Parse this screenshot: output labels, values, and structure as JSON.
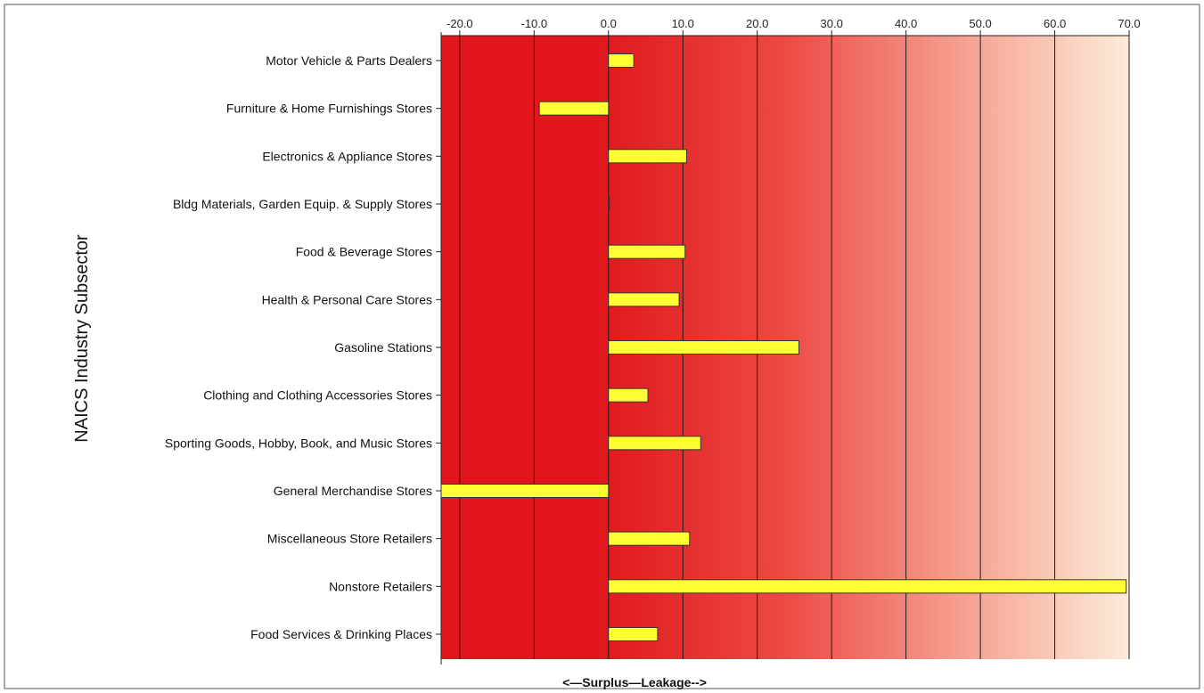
{
  "chart_data": {
    "type": "bar",
    "orientation": "horizontal",
    "title": "",
    "ylabel": "NAICS Industry Subsector",
    "xlabel": "<—Surplus—Leakage-->",
    "xlim": [
      -22.5,
      70.0
    ],
    "x_ticks": [
      -20,
      -10,
      0,
      10,
      20,
      30,
      40,
      50,
      60,
      70
    ],
    "x_tick_labels": [
      "-20.0",
      "-10.0",
      "0.0",
      "10.0",
      "20.0",
      "30.0",
      "40.0",
      "50.0",
      "60.0",
      "70.0"
    ],
    "x_axis_position": "top",
    "grid": true,
    "legend": "none",
    "categories": [
      "Motor Vehicle & Parts Dealers",
      "Furniture & Home Furnishings Stores",
      "Electronics & Appliance Stores",
      "Bldg Materials, Garden Equip. & Supply Stores",
      "Food & Beverage Stores",
      "Health & Personal Care Stores",
      "Gasoline Stations",
      "Clothing and Clothing Accessories Stores",
      "Sporting Goods, Hobby, Book, and Music Stores",
      "General Merchandise Stores",
      "Miscellaneous Store Retailers",
      "Nonstore Retailers",
      "Food Services & Drinking Places"
    ],
    "values": [
      3.4,
      -9.3,
      10.5,
      0.1,
      10.3,
      9.5,
      25.6,
      5.3,
      12.4,
      -22.5,
      10.9,
      69.6,
      6.6
    ],
    "colors": {
      "bar_fill": "#ffff33",
      "bar_stroke": "#333333",
      "background_left": "#e0161c",
      "background_right": "#fcebd9",
      "grid": "#1a1a1a"
    }
  }
}
